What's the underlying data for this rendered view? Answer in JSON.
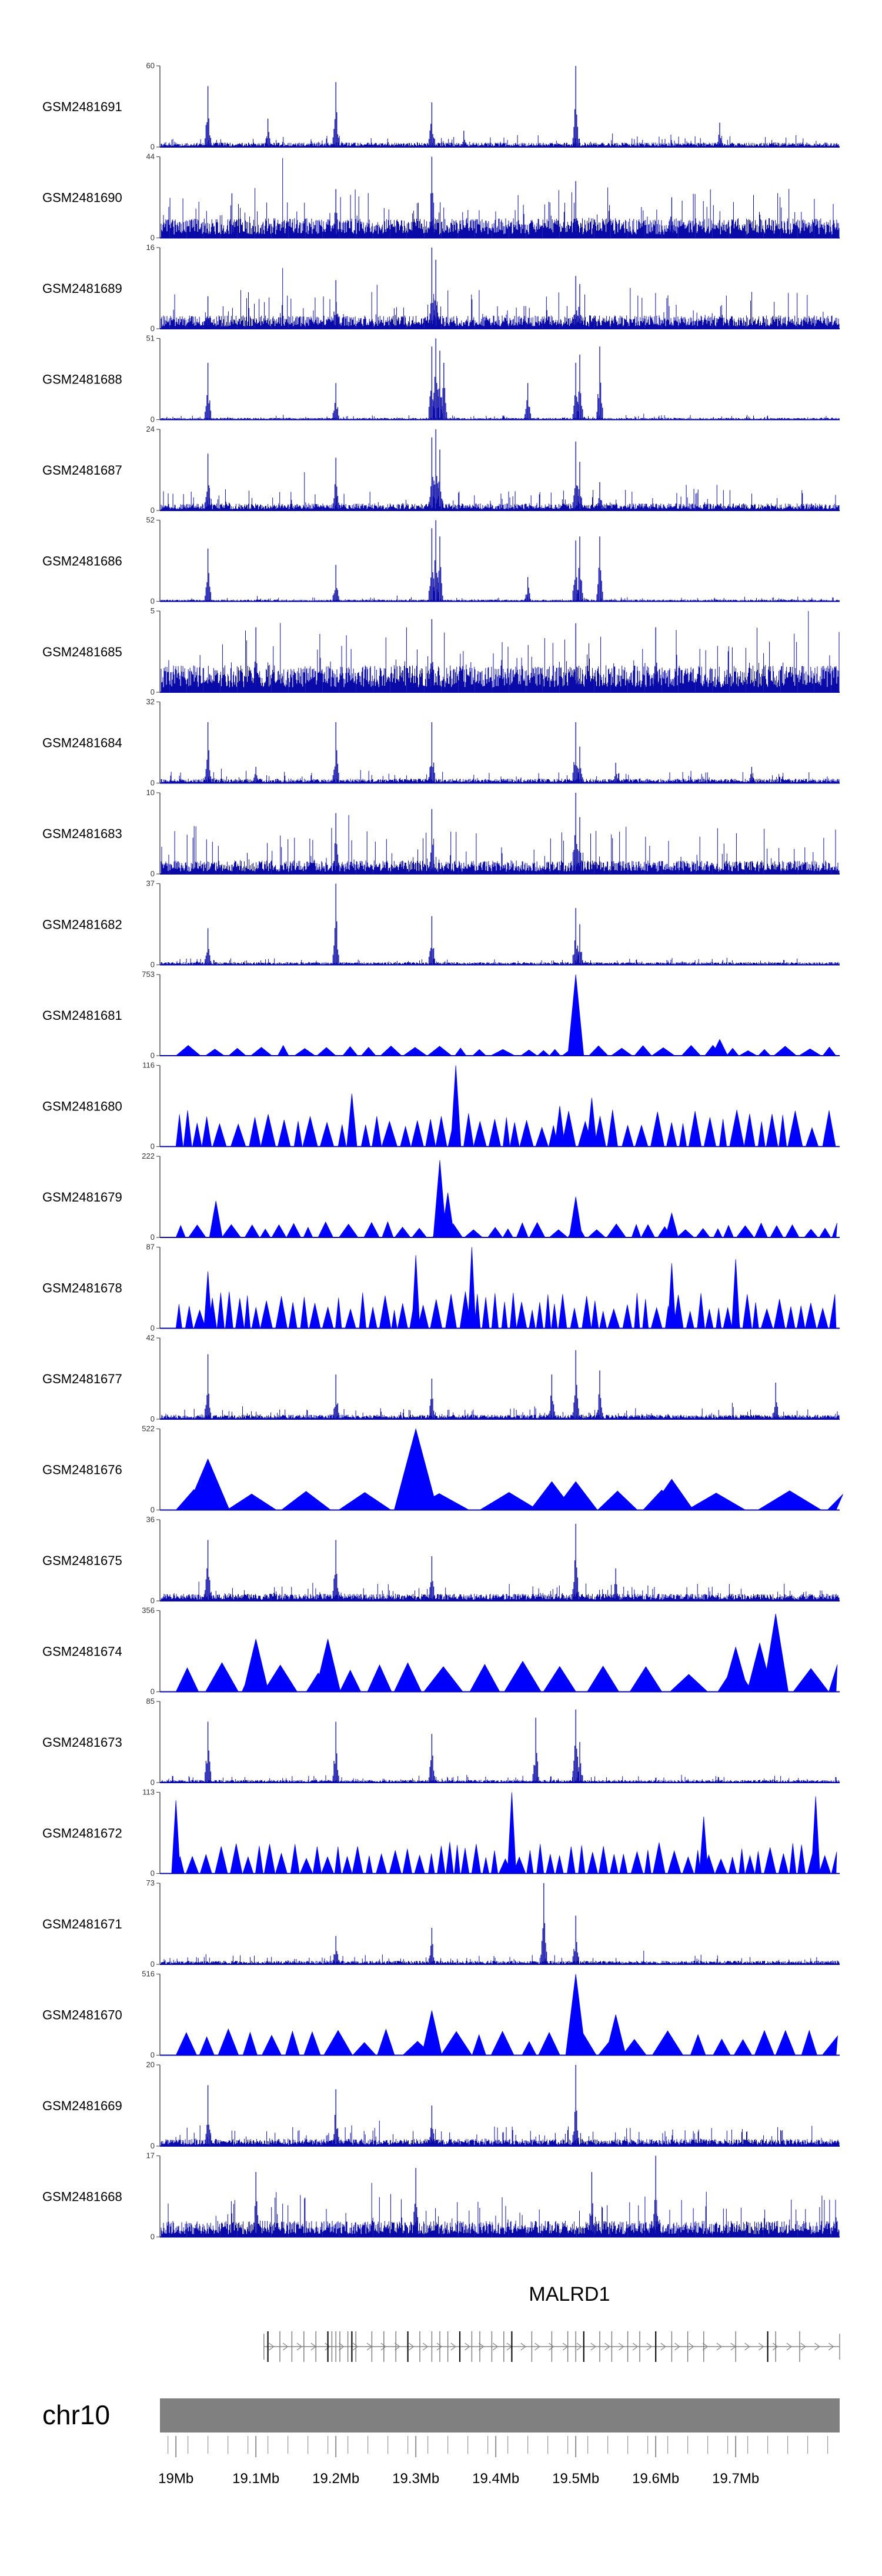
{
  "chart_data": {
    "type": "area",
    "chromosome": "chr10",
    "x_unit": "Mb",
    "xlim": [
      18.98,
      19.83
    ],
    "x_ticks": [
      {
        "value": 19.0,
        "label": "19Mb"
      },
      {
        "value": 19.1,
        "label": "19.1Mb"
      },
      {
        "value": 19.2,
        "label": "19.2Mb"
      },
      {
        "value": 19.3,
        "label": "19.3Mb"
      },
      {
        "value": 19.4,
        "label": "19.4Mb"
      },
      {
        "value": 19.5,
        "label": "19.5Mb"
      },
      {
        "value": 19.6,
        "label": "19.6Mb"
      },
      {
        "value": 19.7,
        "label": "19.7Mb"
      }
    ],
    "gene": {
      "name": "MALRD1",
      "start": 19.11,
      "end": 19.83,
      "strand": "+",
      "exons": [
        19.115,
        19.13,
        19.145,
        19.16,
        19.175,
        19.19,
        19.195,
        19.2,
        19.205,
        19.215,
        19.22,
        19.225,
        19.245,
        19.26,
        19.275,
        19.29,
        19.305,
        19.32,
        19.33,
        19.34,
        19.355,
        19.37,
        19.38,
        19.395,
        19.41,
        19.42,
        19.445,
        19.47,
        19.49,
        19.5,
        19.51,
        19.53,
        19.545,
        19.565,
        19.58,
        19.6,
        19.62,
        19.64,
        19.66,
        19.7,
        19.74,
        19.75,
        19.78
      ]
    },
    "series": [
      {
        "name": "GSM2481691",
        "ymax": 60,
        "style": "line",
        "baseline": 0.05,
        "noise": 0.1,
        "peaks": [
          [
            19.04,
            0.75
          ],
          [
            19.115,
            0.35
          ],
          [
            19.2,
            0.8
          ],
          [
            19.32,
            0.55
          ],
          [
            19.5,
            1.0
          ],
          [
            19.36,
            0.2
          ],
          [
            19.68,
            0.3
          ]
        ]
      },
      {
        "name": "GSM2481690",
        "ymax": 44,
        "style": "line",
        "baseline": 0.22,
        "noise": 0.4,
        "peaks": [
          [
            19.07,
            0.55
          ],
          [
            19.2,
            0.6
          ],
          [
            19.32,
            1.0
          ],
          [
            19.5,
            0.7
          ],
          [
            19.62,
            0.5
          ]
        ]
      },
      {
        "name": "GSM2481689",
        "ymax": 16,
        "style": "line",
        "baseline": 0.15,
        "noise": 0.35,
        "peaks": [
          [
            19.04,
            0.4
          ],
          [
            19.2,
            0.6
          ],
          [
            19.32,
            1.0
          ],
          [
            19.325,
            0.85
          ],
          [
            19.5,
            0.65
          ],
          [
            19.505,
            0.55
          ]
        ]
      },
      {
        "name": "GSM2481688",
        "ymax": 51,
        "style": "line",
        "baseline": 0.02,
        "noise": 0.04,
        "peaks": [
          [
            19.04,
            0.7
          ],
          [
            19.2,
            0.45
          ],
          [
            19.32,
            0.9
          ],
          [
            19.325,
            1.0
          ],
          [
            19.33,
            0.85
          ],
          [
            19.335,
            0.7
          ],
          [
            19.44,
            0.45
          ],
          [
            19.5,
            0.7
          ],
          [
            19.505,
            0.8
          ],
          [
            19.53,
            0.9
          ]
        ]
      },
      {
        "name": "GSM2481687",
        "ymax": 24,
        "style": "line",
        "baseline": 0.08,
        "noise": 0.2,
        "peaks": [
          [
            19.04,
            0.7
          ],
          [
            19.2,
            0.65
          ],
          [
            19.32,
            0.9
          ],
          [
            19.325,
            1.0
          ],
          [
            19.33,
            0.75
          ],
          [
            19.5,
            0.85
          ],
          [
            19.505,
            0.6
          ],
          [
            19.53,
            0.35
          ]
        ]
      },
      {
        "name": "GSM2481686",
        "ymax": 52,
        "style": "line",
        "baseline": 0.02,
        "noise": 0.04,
        "peaks": [
          [
            19.04,
            0.65
          ],
          [
            19.2,
            0.45
          ],
          [
            19.32,
            0.9
          ],
          [
            19.325,
            1.0
          ],
          [
            19.33,
            0.8
          ],
          [
            19.44,
            0.3
          ],
          [
            19.5,
            0.75
          ],
          [
            19.505,
            0.8
          ],
          [
            19.53,
            0.8
          ]
        ]
      },
      {
        "name": "GSM2481685",
        "ymax": 5,
        "style": "line",
        "baseline": 0.3,
        "noise": 0.5,
        "peaks": [
          [
            19.1,
            0.8
          ],
          [
            19.32,
            0.9
          ],
          [
            19.5,
            0.85
          ],
          [
            19.6,
            0.8
          ]
        ]
      },
      {
        "name": "GSM2481684",
        "ymax": 32,
        "style": "line",
        "baseline": 0.05,
        "noise": 0.1,
        "peaks": [
          [
            19.04,
            0.75
          ],
          [
            19.1,
            0.2
          ],
          [
            19.2,
            0.75
          ],
          [
            19.32,
            0.75
          ],
          [
            19.5,
            0.75
          ],
          [
            19.505,
            0.45
          ],
          [
            19.55,
            0.25
          ],
          [
            19.72,
            0.2
          ]
        ]
      },
      {
        "name": "GSM2481683",
        "ymax": 10,
        "style": "line",
        "baseline": 0.15,
        "noise": 0.45,
        "peaks": [
          [
            19.2,
            0.75
          ],
          [
            19.32,
            0.8
          ],
          [
            19.5,
            1.0
          ],
          [
            19.505,
            0.7
          ]
        ]
      },
      {
        "name": "GSM2481682",
        "ymax": 37,
        "style": "line",
        "baseline": 0.03,
        "noise": 0.06,
        "peaks": [
          [
            19.04,
            0.45
          ],
          [
            19.2,
            1.0
          ],
          [
            19.32,
            0.6
          ],
          [
            19.5,
            0.7
          ],
          [
            19.505,
            0.5
          ]
        ]
      },
      {
        "name": "GSM2481681",
        "ymax": 753,
        "style": "triangles",
        "spacing": 0.022,
        "level": 0.1,
        "spikes": [
          [
            19.5,
            1.0
          ],
          [
            19.68,
            0.2
          ]
        ]
      },
      {
        "name": "GSM2481680",
        "ymax": 116,
        "style": "triangles",
        "spacing": 0.014,
        "level": 0.35,
        "spikes": [
          [
            19.22,
            0.65
          ],
          [
            19.35,
            1.0
          ],
          [
            19.52,
            0.6
          ],
          [
            19.48,
            0.5
          ]
        ]
      },
      {
        "name": "GSM2481679",
        "ymax": 222,
        "style": "triangles",
        "spacing": 0.018,
        "level": 0.15,
        "spikes": [
          [
            19.05,
            0.45
          ],
          [
            19.33,
            0.95
          ],
          [
            19.34,
            0.55
          ],
          [
            19.5,
            0.5
          ],
          [
            19.62,
            0.3
          ]
        ]
      },
      {
        "name": "GSM2481678",
        "ymax": 87,
        "style": "triangles",
        "spacing": 0.011,
        "level": 0.35,
        "spikes": [
          [
            19.04,
            0.7
          ],
          [
            19.3,
            0.9
          ],
          [
            19.37,
            1.0
          ],
          [
            19.62,
            0.8
          ],
          [
            19.7,
            0.85
          ]
        ]
      },
      {
        "name": "GSM2481677",
        "ymax": 42,
        "style": "line",
        "baseline": 0.05,
        "noise": 0.1,
        "peaks": [
          [
            19.04,
            0.8
          ],
          [
            19.2,
            0.55
          ],
          [
            19.32,
            0.5
          ],
          [
            19.47,
            0.55
          ],
          [
            19.5,
            0.85
          ],
          [
            19.53,
            0.6
          ],
          [
            19.75,
            0.45
          ]
        ]
      },
      {
        "name": "GSM2481676",
        "ymax": 522,
        "style": "triangles",
        "spacing": 0.06,
        "level": 0.2,
        "spikes": [
          [
            19.04,
            0.63
          ],
          [
            19.3,
            1.0
          ],
          [
            19.47,
            0.35
          ],
          [
            19.5,
            0.35
          ],
          [
            19.62,
            0.38
          ]
        ]
      },
      {
        "name": "GSM2481675",
        "ymax": 36,
        "style": "line",
        "baseline": 0.08,
        "noise": 0.15,
        "peaks": [
          [
            19.04,
            0.75
          ],
          [
            19.2,
            0.75
          ],
          [
            19.32,
            0.55
          ],
          [
            19.5,
            0.95
          ],
          [
            19.55,
            0.4
          ]
        ]
      },
      {
        "name": "GSM2481674",
        "ymax": 356,
        "style": "triangles",
        "spacing": 0.035,
        "level": 0.3,
        "spikes": [
          [
            19.1,
            0.65
          ],
          [
            19.19,
            0.65
          ],
          [
            19.7,
            0.55
          ],
          [
            19.75,
            0.96
          ],
          [
            19.73,
            0.6
          ]
        ]
      },
      {
        "name": "GSM2481673",
        "ymax": 85,
        "style": "line",
        "baseline": 0.03,
        "noise": 0.06,
        "peaks": [
          [
            19.04,
            0.75
          ],
          [
            19.2,
            0.75
          ],
          [
            19.32,
            0.6
          ],
          [
            19.45,
            0.8
          ],
          [
            19.5,
            0.9
          ],
          [
            19.505,
            0.5
          ]
        ]
      },
      {
        "name": "GSM2481672",
        "ymax": 113,
        "style": "triangles",
        "spacing": 0.012,
        "level": 0.3,
        "spikes": [
          [
            19.0,
            0.9
          ],
          [
            19.42,
            1.0
          ],
          [
            19.66,
            0.7
          ],
          [
            19.8,
            0.95
          ]
        ]
      },
      {
        "name": "GSM2481671",
        "ymax": 73,
        "style": "line",
        "baseline": 0.04,
        "noise": 0.08,
        "peaks": [
          [
            19.2,
            0.35
          ],
          [
            19.32,
            0.45
          ],
          [
            19.46,
            1.0
          ],
          [
            19.5,
            0.6
          ]
        ]
      },
      {
        "name": "GSM2481670",
        "ymax": 516,
        "style": "triangles",
        "spacing": 0.028,
        "level": 0.25,
        "spikes": [
          [
            19.32,
            0.55
          ],
          [
            19.5,
            1.0
          ],
          [
            19.55,
            0.5
          ]
        ]
      },
      {
        "name": "GSM2481669",
        "ymax": 20,
        "style": "line",
        "baseline": 0.08,
        "noise": 0.18,
        "peaks": [
          [
            19.04,
            0.75
          ],
          [
            19.2,
            0.7
          ],
          [
            19.32,
            0.5
          ],
          [
            19.5,
            1.0
          ]
        ]
      },
      {
        "name": "GSM2481668",
        "ymax": 17,
        "style": "line",
        "baseline": 0.18,
        "noise": 0.4,
        "peaks": [
          [
            19.1,
            0.8
          ],
          [
            19.3,
            0.85
          ],
          [
            19.52,
            0.8
          ],
          [
            19.6,
            1.0
          ]
        ]
      }
    ]
  }
}
